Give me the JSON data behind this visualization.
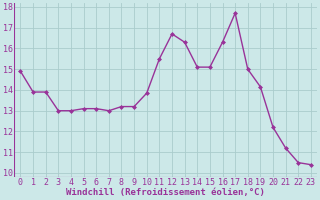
{
  "x": [
    0,
    1,
    2,
    3,
    4,
    5,
    6,
    7,
    8,
    9,
    10,
    11,
    12,
    13,
    14,
    15,
    16,
    17,
    18,
    19,
    20,
    21,
    22,
    23
  ],
  "y": [
    14.9,
    13.9,
    13.9,
    13.0,
    13.0,
    13.1,
    13.1,
    13.0,
    13.2,
    13.2,
    13.85,
    15.5,
    16.7,
    16.3,
    15.1,
    15.1,
    16.3,
    17.7,
    15.0,
    14.15,
    12.2,
    11.2,
    10.5,
    10.4
  ],
  "line_color": "#993399",
  "marker": "D",
  "marker_size": 2.0,
  "bg_color": "#cce8e8",
  "grid_color": "#aacccc",
  "xlabel": "Windchill (Refroidissement éolien,°C)",
  "tick_color": "#993399",
  "ylim": [
    9.8,
    18.2
  ],
  "xlim": [
    -0.5,
    23.5
  ],
  "yticks": [
    10,
    11,
    12,
    13,
    14,
    15,
    16,
    17,
    18
  ],
  "xticks": [
    0,
    1,
    2,
    3,
    4,
    5,
    6,
    7,
    8,
    9,
    10,
    11,
    12,
    13,
    14,
    15,
    16,
    17,
    18,
    19,
    20,
    21,
    22,
    23
  ],
  "line_width": 1.0,
  "tick_fontsize": 6.0,
  "xlabel_fontsize": 6.5
}
